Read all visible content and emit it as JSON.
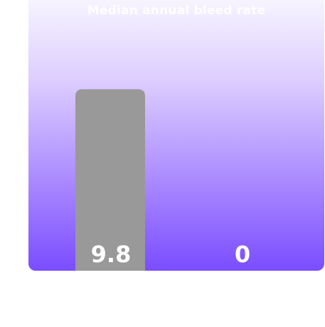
{
  "chart_data": {
    "type": "bar",
    "title": "Median annual bleed rate",
    "categories": [
      "",
      ""
    ],
    "values": [
      9.8,
      0
    ],
    "value_labels": [
      "9.8",
      "0"
    ],
    "ylim": [
      0,
      13
    ],
    "grid": false,
    "legend": "none",
    "colors": {
      "bar": "#999999",
      "label": "#ffffff",
      "panel_top": "#f7f4ff",
      "panel_bottom": "#7a4dff"
    }
  }
}
